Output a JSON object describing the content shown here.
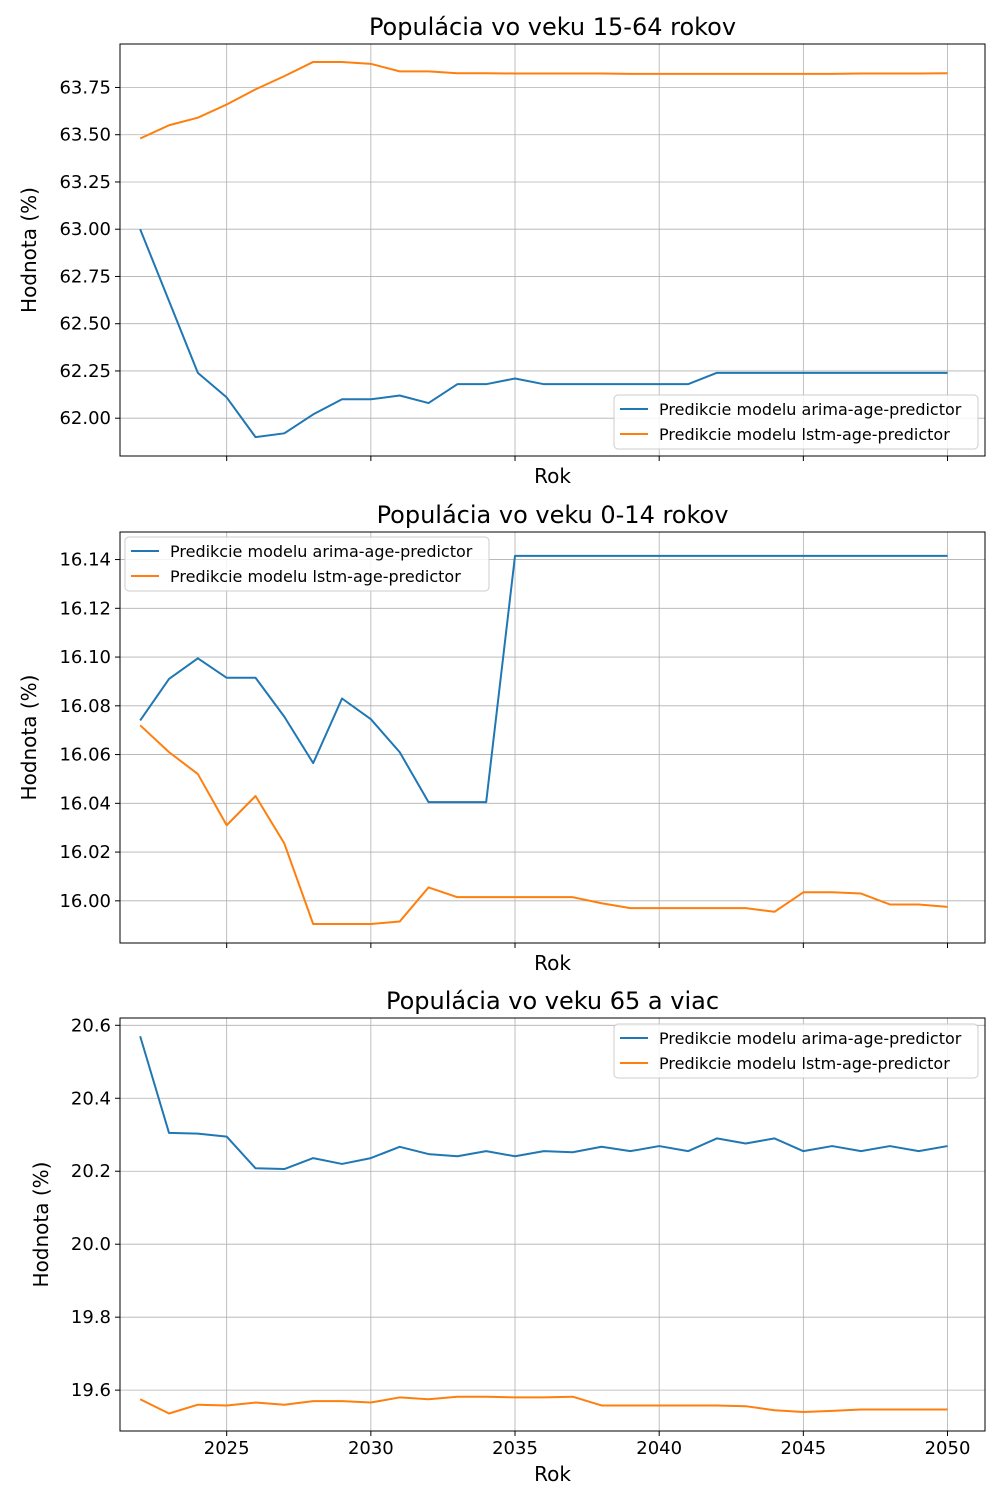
{
  "chart_data": [
    {
      "type": "line",
      "title": "Populácia vo veku 15-64 rokov",
      "xlabel": "Rok",
      "ylabel": "Hodnota (%)",
      "xlim": [
        2021.3,
        2051.3
      ],
      "ylim": [
        61.8,
        63.98
      ],
      "xticks": [
        2025,
        2030,
        2035,
        2040,
        2045,
        2050
      ],
      "xticklabels_visible": false,
      "yticks": [
        62.0,
        62.25,
        62.5,
        62.75,
        63.0,
        63.25,
        63.5,
        63.75
      ],
      "yticklabels": [
        "62.00",
        "62.25",
        "62.50",
        "62.75",
        "63.00",
        "63.25",
        "63.50",
        "63.75"
      ],
      "grid": true,
      "legend_position": "lower-right",
      "x": [
        2022,
        2023,
        2024,
        2025,
        2026,
        2027,
        2028,
        2029,
        2030,
        2031,
        2032,
        2033,
        2034,
        2035,
        2036,
        2037,
        2038,
        2039,
        2040,
        2041,
        2042,
        2043,
        2044,
        2045,
        2046,
        2047,
        2048,
        2049,
        2050
      ],
      "series": [
        {
          "name": "Predikcie modelu arima-age-predictor",
          "color": "#1f77b4",
          "values": [
            63.0,
            62.62,
            62.24,
            62.11,
            61.9,
            61.92,
            62.02,
            62.1,
            62.1,
            62.12,
            62.08,
            62.18,
            62.18,
            62.21,
            62.18,
            62.18,
            62.18,
            62.18,
            62.18,
            62.18,
            62.24,
            62.24,
            62.24,
            62.24,
            62.24,
            62.24,
            62.24,
            62.24,
            62.24
          ]
        },
        {
          "name": "Predikcie modelu lstm-age-predictor",
          "color": "#ff7f0e",
          "values": [
            63.48,
            63.55,
            63.59,
            63.66,
            63.74,
            63.81,
            63.885,
            63.885,
            63.875,
            63.835,
            63.835,
            63.825,
            63.825,
            63.824,
            63.824,
            63.824,
            63.824,
            63.822,
            63.822,
            63.822,
            63.822,
            63.822,
            63.822,
            63.822,
            63.822,
            63.824,
            63.824,
            63.824,
            63.825
          ]
        }
      ]
    },
    {
      "type": "line",
      "title": "Populácia vo veku  0-14 rokov",
      "xlabel": "Rok",
      "ylabel": "Hodnota (%)",
      "xlim": [
        2021.3,
        2051.3
      ],
      "ylim": [
        15.9827,
        16.1513
      ],
      "xticks": [
        2025,
        2030,
        2035,
        2040,
        2045,
        2050
      ],
      "xticklabels_visible": false,
      "yticks": [
        16.0,
        16.02,
        16.04,
        16.06,
        16.08,
        16.1,
        16.12,
        16.14
      ],
      "yticklabels": [
        "16.00",
        "16.02",
        "16.04",
        "16.06",
        "16.08",
        "16.10",
        "16.12",
        "16.14"
      ],
      "grid": true,
      "legend_position": "upper-left",
      "x": [
        2022,
        2023,
        2024,
        2025,
        2026,
        2027,
        2028,
        2029,
        2030,
        2031,
        2032,
        2033,
        2034,
        2035,
        2036,
        2037,
        2038,
        2039,
        2040,
        2041,
        2042,
        2043,
        2044,
        2045,
        2046,
        2047,
        2048,
        2049,
        2050
      ],
      "series": [
        {
          "name": "Predikcie modelu arima-age-predictor",
          "color": "#1f77b4",
          "values": [
            16.074,
            16.091,
            16.0995,
            16.0915,
            16.0915,
            16.0755,
            16.0565,
            16.083,
            16.0745,
            16.061,
            16.0405,
            16.0405,
            16.0405,
            16.1415,
            16.1415,
            16.1415,
            16.1415,
            16.1415,
            16.1415,
            16.1415,
            16.1415,
            16.1415,
            16.1415,
            16.1415,
            16.1415,
            16.1415,
            16.1415,
            16.1415,
            16.1415
          ]
        },
        {
          "name": "Predikcie modelu lstm-age-predictor",
          "color": "#ff7f0e",
          "values": [
            16.072,
            16.061,
            16.052,
            16.031,
            16.043,
            16.0235,
            15.9905,
            15.9905,
            15.9905,
            15.9915,
            16.0055,
            16.0015,
            16.0015,
            16.0015,
            16.0015,
            16.0015,
            15.999,
            15.997,
            15.997,
            15.997,
            15.997,
            15.997,
            15.9955,
            16.0035,
            16.0035,
            16.003,
            15.9985,
            15.9985,
            15.9975
          ]
        }
      ]
    },
    {
      "type": "line",
      "title": "Populácia vo veku 65 a viac",
      "xlabel": "Rok",
      "ylabel": "Hodnota (%)",
      "xlim": [
        2021.3,
        2051.3
      ],
      "ylim": [
        19.488,
        20.62
      ],
      "xticks": [
        2025,
        2030,
        2035,
        2040,
        2045,
        2050
      ],
      "xticklabels_visible": true,
      "yticks": [
        19.6,
        19.8,
        20.0,
        20.2,
        20.4,
        20.6
      ],
      "yticklabels": [
        "19.6",
        "19.8",
        "20.0",
        "20.2",
        "20.4",
        "20.6"
      ],
      "grid": true,
      "legend_position": "upper-right",
      "x": [
        2022,
        2023,
        2024,
        2025,
        2026,
        2027,
        2028,
        2029,
        2030,
        2031,
        2032,
        2033,
        2034,
        2035,
        2036,
        2037,
        2038,
        2039,
        2040,
        2041,
        2042,
        2043,
        2044,
        2045,
        2046,
        2047,
        2048,
        2049,
        2050
      ],
      "series": [
        {
          "name": "Predikcie modelu arima-age-predictor",
          "color": "#1f77b4",
          "values": [
            20.57,
            20.305,
            20.303,
            20.295,
            20.208,
            20.206,
            20.236,
            20.22,
            20.236,
            20.267,
            20.247,
            20.241,
            20.255,
            20.241,
            20.255,
            20.252,
            20.267,
            20.255,
            20.269,
            20.255,
            20.29,
            20.276,
            20.29,
            20.255,
            20.269,
            20.255,
            20.269,
            20.255,
            20.269
          ]
        },
        {
          "name": "Predikcie modelu lstm-age-predictor",
          "color": "#ff7f0e",
          "values": [
            19.575,
            19.536,
            19.56,
            19.558,
            19.566,
            19.56,
            19.57,
            19.57,
            19.566,
            19.58,
            19.575,
            19.582,
            19.582,
            19.58,
            19.58,
            19.582,
            19.558,
            19.558,
            19.558,
            19.558,
            19.558,
            19.556,
            19.545,
            19.54,
            19.543,
            19.547,
            19.547,
            19.547,
            19.547
          ]
        }
      ]
    }
  ]
}
